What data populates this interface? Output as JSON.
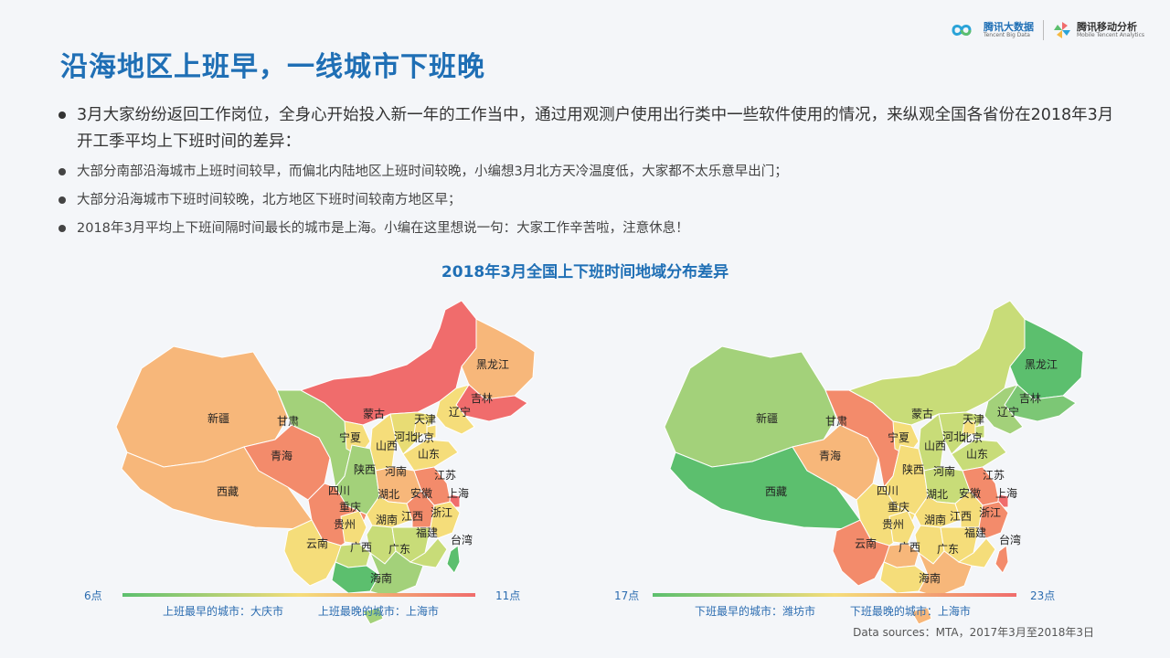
{
  "header": {
    "title": "沿海地区上班早，一线城市下班晚",
    "brand1_name": "腾讯大数据",
    "brand1_sub": "Tencent Big Data",
    "brand2_name": "腾讯移动分析",
    "brand2_sub": "Mobile Tencent Analytics"
  },
  "bullets": {
    "main": "3月大家纷纷返回工作岗位，全身心开始投入新一年的工作当中，通过用观测户使用出行类中一些软件使用的情况，来纵观全国各省份在2018年3月开工季平均上下班时间的差异：",
    "items": [
      "大部分南部沿海城市上班时间较早，而偏北内陆地区上班时间较晚，小编想3月北方天冷温度低，大家都不太乐意早出门；",
      "大部分沿海城市下班时间较晚，北方地区下班时间较南方地区早；",
      "2018年3月平均上下班间隔时间最长的城市是上海。小编在这里想说一句：大家工作辛苦啦，注意休息！"
    ]
  },
  "chart_title": "2018年3月全国上下班时间地域分布差异",
  "colors": {
    "title": "#1f6fb5",
    "scale_low": "#5cbf6e",
    "scale_mid": "#f5dd7a",
    "scale_high": "#f06c6c"
  },
  "maps": [
    {
      "id": "commute-start",
      "legend_low": "6点",
      "legend_high": "11点",
      "note_earliest": "上班最早的城市：大庆市",
      "note_latest": "上班最晚的城市：上海市",
      "provinces": {
        "xinjiang": {
          "label": "新疆",
          "color": "#f7b77a"
        },
        "xizang": {
          "label": "西藏",
          "color": "#f7b77a"
        },
        "qinghai": {
          "label": "青海",
          "color": "#f38b6b"
        },
        "gansu": {
          "label": "甘肃",
          "color": "#a3d17a"
        },
        "neimenggu": {
          "label": "蒙古",
          "color": "#f06c6c"
        },
        "heilongjiang": {
          "label": "黑龙江",
          "color": "#f7b77a"
        },
        "jilin": {
          "label": "吉林",
          "color": "#f06c6c"
        },
        "liaoning": {
          "label": "辽宁",
          "color": "#f5dd7a"
        },
        "ningxia": {
          "label": "宁夏",
          "color": "#f5dd7a"
        },
        "shanxi": {
          "label": "山西",
          "color": "#f5dd7a"
        },
        "hebei": {
          "label": "河北",
          "color": "#e8dc74"
        },
        "beijing": {
          "label": "北京",
          "color": "#f5dd7a"
        },
        "tianjin": {
          "label": "天津",
          "color": "#f5dd7a"
        },
        "shandong": {
          "label": "山东",
          "color": "#f5dd7a"
        },
        "shaanxi": {
          "label": "陕西",
          "color": "#a3d17a"
        },
        "henan": {
          "label": "河南",
          "color": "#f7b77a"
        },
        "jiangsu": {
          "label": "江苏",
          "color": "#f38b6b"
        },
        "shanghai": {
          "label": "上海",
          "color": "#f06c6c"
        },
        "sichuan": {
          "label": "四川",
          "color": "#f38b6b"
        },
        "chongqing": {
          "label": "重庆",
          "color": "#f5dd7a"
        },
        "hubei": {
          "label": "湖北",
          "color": "#f5dd7a"
        },
        "anhui": {
          "label": "安徽",
          "color": "#f38b6b"
        },
        "zhejiang": {
          "label": "浙江",
          "color": "#f5dd7a"
        },
        "guizhou": {
          "label": "贵州",
          "color": "#c8dc78"
        },
        "hunan": {
          "label": "湖南",
          "color": "#c8dc78"
        },
        "jiangxi": {
          "label": "江西",
          "color": "#c8dc78"
        },
        "yunnan": {
          "label": "云南",
          "color": "#f5dd7a"
        },
        "guangxi": {
          "label": "广西",
          "color": "#5cbf6e"
        },
        "guangdong": {
          "label": "广东",
          "color": "#a3d17a"
        },
        "fujian": {
          "label": "福建",
          "color": "#c8dc78"
        },
        "taiwan": {
          "label": "台湾",
          "color": "#5cbf6e"
        },
        "hainan": {
          "label": "海南",
          "color": "#a3d17a"
        }
      }
    },
    {
      "id": "commute-end",
      "legend_low": "17点",
      "legend_high": "23点",
      "note_earliest": "下班最早的城市：潍坊市",
      "note_latest": "下班最晚的城市：上海市",
      "provinces": {
        "xinjiang": {
          "label": "新疆",
          "color": "#a3d17a"
        },
        "xizang": {
          "label": "西藏",
          "color": "#5cbf6e"
        },
        "qinghai": {
          "label": "青海",
          "color": "#f7b77a"
        },
        "gansu": {
          "label": "甘肃",
          "color": "#f38b6b"
        },
        "neimenggu": {
          "label": "蒙古",
          "color": "#c8dc78"
        },
        "heilongjiang": {
          "label": "黑龙江",
          "color": "#5cbf6e"
        },
        "jilin": {
          "label": "吉林",
          "color": "#7cc775"
        },
        "liaoning": {
          "label": "辽宁",
          "color": "#a3d17a"
        },
        "ningxia": {
          "label": "宁夏",
          "color": "#f5dd7a"
        },
        "shanxi": {
          "label": "山西",
          "color": "#c8dc78"
        },
        "hebei": {
          "label": "河北",
          "color": "#c8dc78"
        },
        "beijing": {
          "label": "北京",
          "color": "#f5dd7a"
        },
        "tianjin": {
          "label": "天津",
          "color": "#c8dc78"
        },
        "shandong": {
          "label": "山东",
          "color": "#c8dc78"
        },
        "shaanxi": {
          "label": "陕西",
          "color": "#f5dd7a"
        },
        "henan": {
          "label": "河南",
          "color": "#c8dc78"
        },
        "jiangsu": {
          "label": "江苏",
          "color": "#f38b6b"
        },
        "shanghai": {
          "label": "上海",
          "color": "#f06c6c"
        },
        "sichuan": {
          "label": "四川",
          "color": "#f5dd7a"
        },
        "chongqing": {
          "label": "重庆",
          "color": "#f5dd7a"
        },
        "hubei": {
          "label": "湖北",
          "color": "#f5dd7a"
        },
        "anhui": {
          "label": "安徽",
          "color": "#f5dd7a"
        },
        "zhejiang": {
          "label": "浙江",
          "color": "#f38b6b"
        },
        "guizhou": {
          "label": "贵州",
          "color": "#f7b77a"
        },
        "hunan": {
          "label": "湖南",
          "color": "#f5dd7a"
        },
        "jiangxi": {
          "label": "江西",
          "color": "#f5dd7a"
        },
        "yunnan": {
          "label": "云南",
          "color": "#f38b6b"
        },
        "guangxi": {
          "label": "广西",
          "color": "#f5dd7a"
        },
        "guangdong": {
          "label": "广东",
          "color": "#f7b77a"
        },
        "fujian": {
          "label": "福建",
          "color": "#f5dd7a"
        },
        "taiwan": {
          "label": "台湾",
          "color": "#f38b6b"
        },
        "hainan": {
          "label": "海南",
          "color": "#f7b77a"
        }
      }
    }
  ],
  "source": "Data sources：MTA，2017年3月至2018年3日"
}
